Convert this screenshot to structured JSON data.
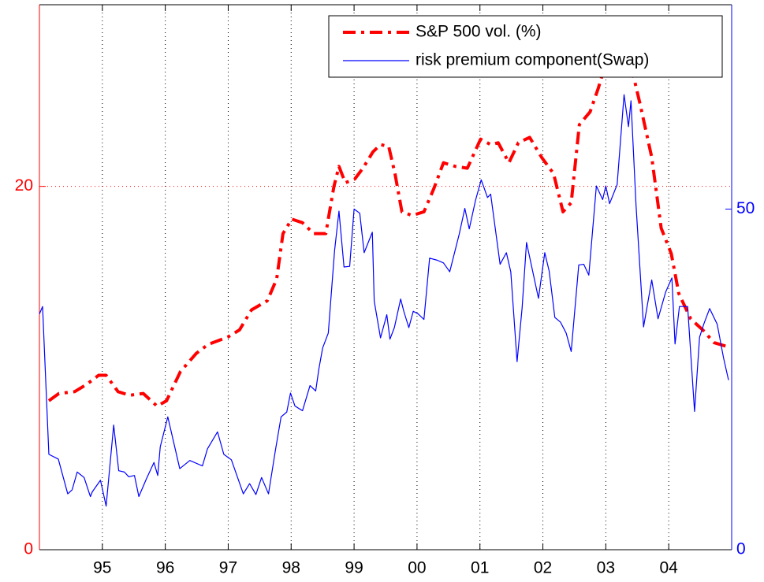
{
  "chart_data": {
    "type": "line",
    "xlim": [
      1994,
      2005
    ],
    "xticks": [
      {
        "value": 1995,
        "label": "95"
      },
      {
        "value": 1996,
        "label": "96"
      },
      {
        "value": 1997,
        "label": "97"
      },
      {
        "value": 1998,
        "label": "98"
      },
      {
        "value": 1999,
        "label": "99"
      },
      {
        "value": 2000,
        "label": "00"
      },
      {
        "value": 2001,
        "label": "01"
      },
      {
        "value": 2002,
        "label": "02"
      },
      {
        "value": 2003,
        "label": "03"
      },
      {
        "value": 2004,
        "label": "04"
      }
    ],
    "ylim": [
      0,
      30
    ],
    "yticks": [
      0,
      20
    ],
    "y2lim": [
      0,
      80
    ],
    "y2ticks": [
      0,
      50
    ],
    "grid": true,
    "legend": "upper right",
    "left_axis_color": "#ff0000",
    "right_axis_color": "#0000ff",
    "series": [
      {
        "name": "S&P 500 vol. (%)",
        "color": "#ff0000",
        "style": "dashdot",
        "x": [
          1994.15,
          1994.31,
          1994.56,
          1994.75,
          1994.94,
          1995.06,
          1995.25,
          1995.43,
          1995.65,
          1995.87,
          1996.02,
          1996.24,
          1996.49,
          1996.68,
          1996.99,
          1997.18,
          1997.37,
          1997.62,
          1997.77,
          1997.87,
          1998.01,
          1998.18,
          1998.36,
          1998.55,
          1998.68,
          1998.76,
          1998.86,
          1999.01,
          1999.14,
          1999.3,
          1999.42,
          1999.55,
          1999.65,
          1999.76,
          1999.92,
          2000.11,
          2000.27,
          2000.42,
          2000.61,
          2000.8,
          2001.01,
          2001.17,
          2001.29,
          2001.46,
          2001.61,
          2001.79,
          2001.98,
          2002.17,
          2002.32,
          2002.45,
          2002.58,
          2002.75,
          2002.88,
          2002.95,
          2003.08,
          2003.25,
          2003.41,
          2003.54,
          2003.73,
          2003.88,
          2004.04,
          2004.16,
          2004.35,
          2004.54,
          2004.72,
          2004.91
        ],
        "values": [
          8.2,
          8.6,
          8.7,
          9.1,
          9.6,
          9.6,
          8.7,
          8.5,
          8.6,
          7.9,
          8.2,
          9.8,
          10.8,
          11.3,
          11.7,
          12.1,
          13.2,
          13.7,
          14.9,
          17.4,
          18.2,
          18.0,
          17.4,
          17.4,
          20.0,
          21.1,
          20.2,
          20.4,
          21.0,
          21.9,
          22.3,
          22.2,
          20.7,
          18.6,
          18.4,
          18.6,
          19.9,
          21.3,
          21.1,
          21.0,
          22.6,
          22.3,
          22.4,
          21.3,
          22.4,
          22.7,
          21.6,
          20.7,
          18.6,
          19.1,
          23.4,
          24.1,
          25.4,
          26.2,
          26.6,
          26.8,
          26.5,
          24.6,
          21.6,
          17.7,
          16.3,
          14.1,
          12.7,
          12.1,
          11.4,
          11.2
        ]
      },
      {
        "name": "risk premium component(Swap)",
        "color": "#0000ff",
        "style": "solid",
        "axis": "y2",
        "x": [
          1994.0,
          1994.05,
          1994.15,
          1994.3,
          1994.45,
          1994.52,
          1994.6,
          1994.71,
          1994.81,
          1994.84,
          1994.97,
          1995.06,
          1995.18,
          1995.26,
          1995.35,
          1995.42,
          1995.51,
          1995.58,
          1995.7,
          1995.82,
          1995.88,
          1995.92,
          1996.04,
          1996.23,
          1996.39,
          1996.59,
          1996.67,
          1996.83,
          1996.93,
          1997.05,
          1997.24,
          1997.34,
          1997.44,
          1997.53,
          1997.64,
          1997.75,
          1997.84,
          1997.93,
          1997.99,
          1998.06,
          1998.18,
          1998.3,
          1998.39,
          1998.44,
          1998.5,
          1998.59,
          1998.69,
          1998.76,
          1998.84,
          1998.93,
          1999.0,
          1999.09,
          1999.16,
          1999.29,
          1999.32,
          1999.42,
          1999.52,
          1999.57,
          1999.64,
          1999.74,
          1999.79,
          1999.87,
          1999.94,
          2000.02,
          2000.11,
          2000.2,
          2000.32,
          2000.42,
          2000.52,
          2000.67,
          2000.76,
          2000.83,
          2000.93,
          2001.02,
          2001.12,
          2001.17,
          2001.32,
          2001.42,
          2001.49,
          2001.59,
          2001.67,
          2001.74,
          2001.93,
          2002.03,
          2002.1,
          2002.19,
          2002.28,
          2002.37,
          2002.45,
          2002.57,
          2002.65,
          2002.73,
          2002.85,
          2002.95,
          2003.0,
          2003.06,
          2003.18,
          2003.29,
          2003.36,
          2003.4,
          2003.48,
          2003.6,
          2003.73,
          2003.83,
          2003.95,
          2004.05,
          2004.1,
          2004.17,
          2004.3,
          2004.41,
          2004.49,
          2004.56,
          2004.65,
          2004.77,
          2004.87,
          2004.95
        ],
        "values": [
          34.6,
          35.7,
          14.0,
          13.3,
          8.2,
          8.8,
          11.4,
          10.6,
          7.8,
          8.5,
          10.2,
          6.4,
          18.3,
          11.6,
          11.4,
          10.7,
          10.9,
          7.8,
          10.4,
          12.8,
          10.9,
          15.1,
          19.5,
          11.9,
          13.1,
          12.3,
          14.8,
          17.3,
          14.0,
          13.2,
          8.2,
          9.7,
          8.1,
          10.6,
          8.2,
          14.6,
          19.5,
          20.2,
          23.0,
          21.1,
          20.4,
          24.1,
          23.3,
          26.5,
          29.6,
          31.8,
          43.9,
          49.7,
          41.5,
          41.6,
          50.0,
          49.4,
          43.6,
          46.6,
          36.5,
          31.1,
          34.5,
          30.9,
          32.6,
          36.8,
          35.0,
          32.6,
          35.0,
          34.6,
          33.8,
          42.8,
          42.5,
          42.1,
          40.8,
          46.3,
          50.1,
          47.1,
          51.3,
          54.3,
          51.7,
          52.2,
          41.9,
          43.6,
          40.8,
          27.6,
          35.5,
          45.1,
          36.9,
          43.6,
          40.9,
          34.1,
          33.4,
          31.8,
          29.1,
          41.8,
          41.9,
          40.3,
          53.4,
          51.4,
          53.4,
          50.8,
          53.6,
          66.8,
          62.1,
          65.9,
          50.6,
          32.7,
          39.6,
          33.9,
          37.8,
          39.9,
          30.2,
          35.7,
          35.7,
          20.3,
          31.2,
          33.2,
          35.4,
          33.1,
          28.2,
          24.9
        ]
      }
    ]
  }
}
